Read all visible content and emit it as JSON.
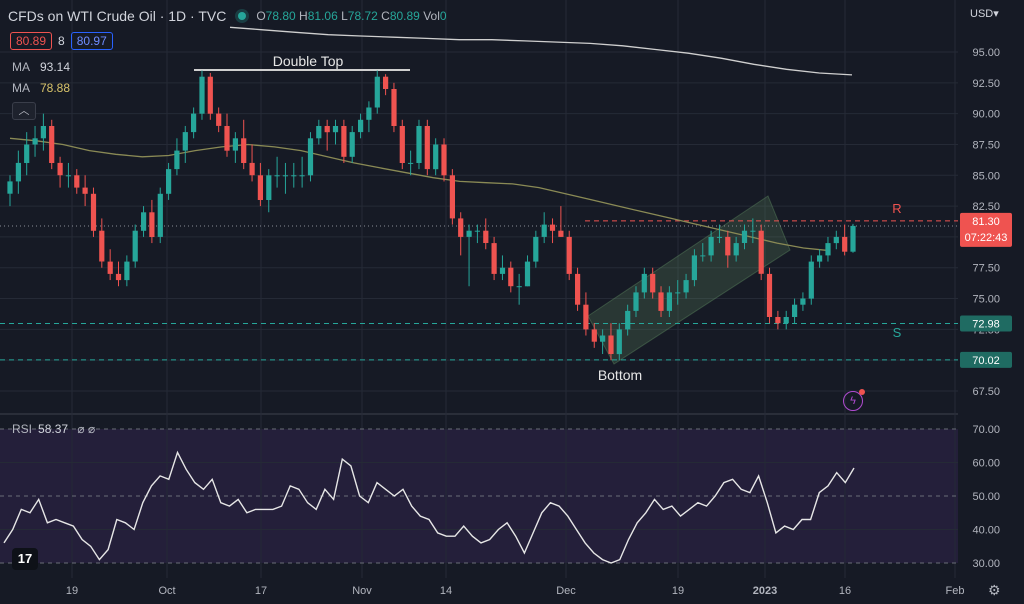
{
  "header": {
    "title": "CFDs on WTI Crude Oil · 1D · TVC",
    "open_label": "O",
    "open": "78.80",
    "high_label": "H",
    "high": "81.06",
    "low_label": "L",
    "low": "78.72",
    "close_label": "C",
    "close": "80.89",
    "vol_label": "Vol",
    "vol": "0"
  },
  "bid_ask": {
    "bid": "80.89",
    "spread": "8",
    "ask": "80.97"
  },
  "indicators": {
    "ma1_label": "MA",
    "ma1_value": "93.14",
    "ma2_label": "MA",
    "ma2_value": "78.88",
    "rsi_label": "RSI",
    "rsi_value": "58.37",
    "rsi_icons": "⌀ ⌀"
  },
  "currency": "USD▾",
  "logo_text": "17",
  "colors": {
    "background": "#161a25",
    "up": "#26a69a",
    "down": "#ef5350",
    "grid": "#252a36",
    "ma_long": "#cfcfcf",
    "ma_short": "#8a8a55",
    "rsi_band": "#241f3a",
    "resistance": "#ef5350",
    "support": "#26a69a"
  },
  "chart_data": [
    {
      "type": "candlestick",
      "y_ticks": [
        "95.00",
        "92.50",
        "90.00",
        "87.50",
        "85.00",
        "82.50",
        "80.00",
        "77.50",
        "75.00",
        "72.50",
        "70.00",
        "67.50"
      ],
      "x_ticks": [
        "19",
        "Oct",
        "17",
        "Nov",
        "14",
        "Dec",
        "19",
        "2023",
        "16",
        "Feb"
      ],
      "ylim": [
        66.0,
        97.0
      ],
      "ohlc": [
        [
          83.5,
          85.0,
          82.5,
          84.5
        ],
        [
          84.5,
          87.0,
          83.5,
          86.0
        ],
        [
          86.0,
          88.5,
          85.0,
          87.5
        ],
        [
          87.5,
          89.0,
          86.5,
          88.0
        ],
        [
          88.0,
          90.0,
          87.0,
          89.0
        ],
        [
          89.0,
          89.5,
          85.5,
          86.0
        ],
        [
          86.0,
          86.5,
          84.0,
          85.0
        ],
        [
          85.0,
          86.0,
          84.0,
          85.0
        ],
        [
          85.0,
          85.5,
          83.5,
          84.0
        ],
        [
          84.0,
          85.0,
          82.5,
          83.5
        ],
        [
          83.5,
          84.0,
          80.0,
          80.5
        ],
        [
          80.5,
          81.5,
          77.5,
          78.0
        ],
        [
          78.0,
          79.0,
          76.5,
          77.0
        ],
        [
          77.0,
          78.0,
          76.0,
          76.5
        ],
        [
          76.5,
          78.5,
          76.0,
          78.0
        ],
        [
          78.0,
          81.0,
          77.5,
          80.5
        ],
        [
          80.5,
          82.5,
          80.0,
          82.0
        ],
        [
          82.0,
          83.0,
          79.5,
          80.0
        ],
        [
          80.0,
          84.0,
          79.5,
          83.5
        ],
        [
          83.5,
          86.0,
          83.0,
          85.5
        ],
        [
          85.5,
          88.0,
          85.0,
          87.0
        ],
        [
          87.0,
          89.0,
          86.0,
          88.5
        ],
        [
          88.5,
          90.5,
          88.0,
          90.0
        ],
        [
          90.0,
          93.5,
          89.5,
          93.0
        ],
        [
          93.0,
          93.3,
          89.5,
          90.0
        ],
        [
          90.0,
          90.5,
          88.5,
          89.0
        ],
        [
          89.0,
          90.0,
          86.5,
          87.0
        ],
        [
          87.0,
          88.5,
          86.0,
          88.0
        ],
        [
          88.0,
          89.5,
          85.5,
          86.0
        ],
        [
          86.0,
          87.5,
          84.5,
          85.0
        ],
        [
          85.0,
          86.0,
          82.5,
          83.0
        ],
        [
          83.0,
          85.5,
          82.0,
          85.0
        ],
        [
          85.0,
          86.5,
          84.0,
          85.0
        ],
        [
          85.0,
          86.0,
          83.5,
          85.0
        ],
        [
          85.0,
          86.0,
          84.0,
          85.0
        ],
        [
          85.0,
          86.5,
          84.0,
          85.0
        ],
        [
          85.0,
          88.5,
          84.5,
          88.0
        ],
        [
          88.0,
          89.5,
          87.5,
          89.0
        ],
        [
          89.0,
          89.5,
          87.0,
          88.5
        ],
        [
          88.5,
          89.5,
          87.5,
          89.0
        ],
        [
          89.0,
          89.5,
          86.0,
          86.5
        ],
        [
          86.5,
          89.0,
          86.0,
          88.5
        ],
        [
          88.5,
          90.0,
          88.0,
          89.5
        ],
        [
          89.5,
          91.0,
          88.5,
          90.5
        ],
        [
          90.5,
          93.5,
          90.0,
          93.0
        ],
        [
          93.0,
          93.2,
          91.5,
          92.0
        ],
        [
          92.0,
          92.5,
          88.5,
          89.0
        ],
        [
          89.0,
          89.5,
          85.5,
          86.0
        ],
        [
          86.0,
          87.0,
          85.0,
          86.0
        ],
        [
          86.0,
          89.5,
          85.5,
          89.0
        ],
        [
          89.0,
          89.5,
          85.0,
          85.5
        ],
        [
          85.5,
          88.0,
          85.0,
          87.5
        ],
        [
          87.5,
          88.0,
          84.5,
          85.0
        ],
        [
          85.0,
          85.5,
          81.0,
          81.5
        ],
        [
          81.5,
          82.0,
          78.5,
          80.0
        ],
        [
          80.0,
          81.0,
          76.0,
          80.5
        ],
        [
          80.5,
          81.0,
          79.5,
          80.5
        ],
        [
          80.5,
          81.5,
          79.0,
          79.5
        ],
        [
          79.5,
          80.0,
          76.5,
          77.0
        ],
        [
          77.0,
          78.5,
          76.5,
          77.5
        ],
        [
          77.5,
          78.0,
          75.5,
          76.0
        ],
        [
          76.0,
          77.0,
          74.5,
          76.0
        ],
        [
          76.0,
          78.5,
          76.0,
          78.0
        ],
        [
          78.0,
          80.5,
          77.5,
          80.0
        ],
        [
          80.0,
          82.0,
          79.5,
          81.0
        ],
        [
          81.0,
          81.5,
          79.5,
          80.5
        ],
        [
          80.5,
          82.5,
          80.0,
          80.0
        ],
        [
          80.0,
          80.5,
          76.5,
          77.0
        ],
        [
          77.0,
          77.5,
          74.0,
          74.5
        ],
        [
          74.5,
          75.5,
          72.0,
          72.5
        ],
        [
          72.5,
          73.0,
          71.0,
          71.5
        ],
        [
          71.5,
          72.5,
          70.5,
          72.0
        ],
        [
          72.0,
          73.0,
          70.0,
          70.5
        ],
        [
          70.5,
          73.0,
          70.0,
          72.5
        ],
        [
          72.5,
          74.5,
          72.0,
          74.0
        ],
        [
          74.0,
          76.0,
          73.5,
          75.5
        ],
        [
          75.5,
          77.5,
          75.0,
          77.0
        ],
        [
          77.0,
          77.5,
          75.0,
          75.5
        ],
        [
          75.5,
          76.0,
          73.5,
          74.0
        ],
        [
          74.0,
          76.0,
          73.5,
          75.5
        ],
        [
          75.5,
          76.5,
          74.5,
          75.5
        ],
        [
          75.5,
          77.0,
          75.0,
          76.5
        ],
        [
          76.5,
          79.0,
          76.0,
          78.5
        ],
        [
          78.5,
          79.5,
          78.0,
          78.5
        ],
        [
          78.5,
          80.5,
          78.0,
          80.0
        ],
        [
          80.0,
          81.0,
          79.5,
          80.0
        ],
        [
          80.0,
          80.5,
          77.5,
          78.5
        ],
        [
          78.5,
          80.0,
          78.0,
          79.5
        ],
        [
          79.5,
          81.0,
          79.0,
          80.5
        ],
        [
          80.5,
          81.5,
          79.5,
          80.5
        ],
        [
          80.5,
          81.0,
          76.5,
          77.0
        ],
        [
          77.0,
          77.5,
          73.0,
          73.5
        ],
        [
          73.5,
          74.0,
          72.5,
          73.0
        ],
        [
          73.0,
          74.0,
          72.5,
          73.5
        ],
        [
          73.5,
          75.0,
          73.0,
          74.5
        ],
        [
          74.5,
          75.5,
          74.0,
          75.0
        ],
        [
          75.0,
          78.5,
          74.5,
          78.0
        ],
        [
          78.0,
          79.0,
          77.5,
          78.5
        ],
        [
          78.5,
          80.0,
          78.0,
          79.5
        ],
        [
          79.5,
          80.5,
          79.0,
          80.0
        ],
        [
          80.0,
          81.0,
          78.5,
          78.8
        ],
        [
          78.8,
          81.06,
          78.72,
          80.89
        ]
      ],
      "ma_long": [
        97.0,
        96.8,
        96.6,
        96.4,
        96.3,
        96.2,
        96.1,
        96.0,
        96.0,
        95.9,
        95.8,
        95.7,
        95.5,
        95.2,
        94.9,
        94.5,
        94.0,
        93.6,
        93.3,
        93.14
      ],
      "ma_short": [
        88.0,
        87.8,
        87.5,
        87.0,
        86.7,
        86.5,
        86.6,
        87.0,
        87.3,
        87.5,
        87.3,
        87.0,
        86.5,
        86.0,
        85.6,
        85.2,
        84.8,
        84.5,
        84.4,
        84.3,
        84.0,
        83.5,
        83.0,
        82.5,
        82.0,
        81.5,
        81.0,
        80.5,
        80.0,
        79.5,
        79.1,
        78.88
      ],
      "resistance": 81.3,
      "support": 72.98,
      "support_low": 70.02,
      "dotted_price": 80.89,
      "price_tags": {
        "resistance": "81.30",
        "timer": "07:22:43",
        "support": "72.98",
        "low": "70.02"
      },
      "annotations": {
        "double_top": "Double Top",
        "bottom": "Bottom",
        "r": "R",
        "s": "S"
      }
    },
    {
      "type": "line",
      "title": "RSI",
      "y_ticks": [
        "70.00",
        "60.00",
        "50.00",
        "40.00",
        "30.00"
      ],
      "ylim": [
        27,
        73
      ],
      "values": [
        36,
        40,
        46,
        45,
        49,
        42,
        43,
        42,
        41,
        37,
        35,
        31,
        34,
        43,
        42,
        40,
        48,
        53,
        56,
        55,
        63,
        58,
        54,
        52,
        55,
        48,
        47,
        49,
        45,
        46,
        46,
        46,
        47,
        53,
        52,
        48,
        46,
        52,
        49,
        61,
        59,
        50,
        48,
        54,
        52,
        50,
        52,
        47,
        44,
        43,
        39,
        38,
        38,
        41,
        38,
        36,
        37,
        40,
        42,
        38,
        33,
        39,
        45,
        48,
        47,
        44,
        40,
        36,
        33,
        31,
        30,
        31,
        37,
        42,
        45,
        49,
        46,
        47,
        44,
        46,
        48,
        47,
        50,
        54,
        55,
        52,
        51,
        56,
        48,
        39,
        41,
        40,
        43,
        43,
        51,
        53,
        57,
        54,
        58.37
      ]
    }
  ]
}
